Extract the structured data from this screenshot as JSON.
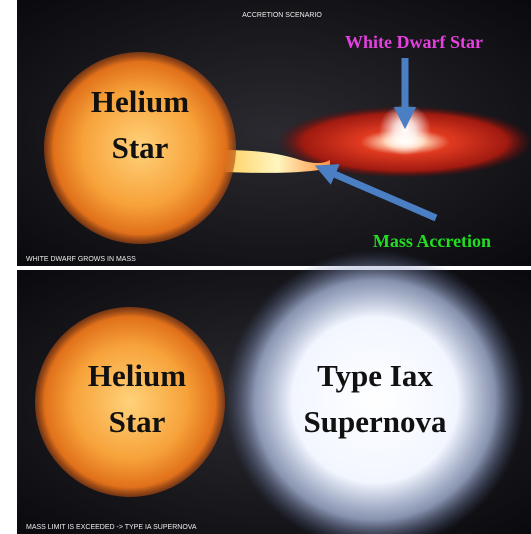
{
  "top_panel": {
    "title": "ACCRETION SCENARIO",
    "star_label": [
      "Helium",
      "Star"
    ],
    "white_dwarf_label": "White Dwarf Star",
    "accretion_label": "Mass Accretion",
    "caption": "WHITE DWARF GROWS IN MASS"
  },
  "bottom_panel": {
    "star_label": [
      "Helium",
      "Star"
    ],
    "supernova_label": [
      "Type Iax",
      "Supernova"
    ],
    "caption": "MASS LIMIT IS EXCEEDED -> TYPE IA SUPERNOVA"
  }
}
